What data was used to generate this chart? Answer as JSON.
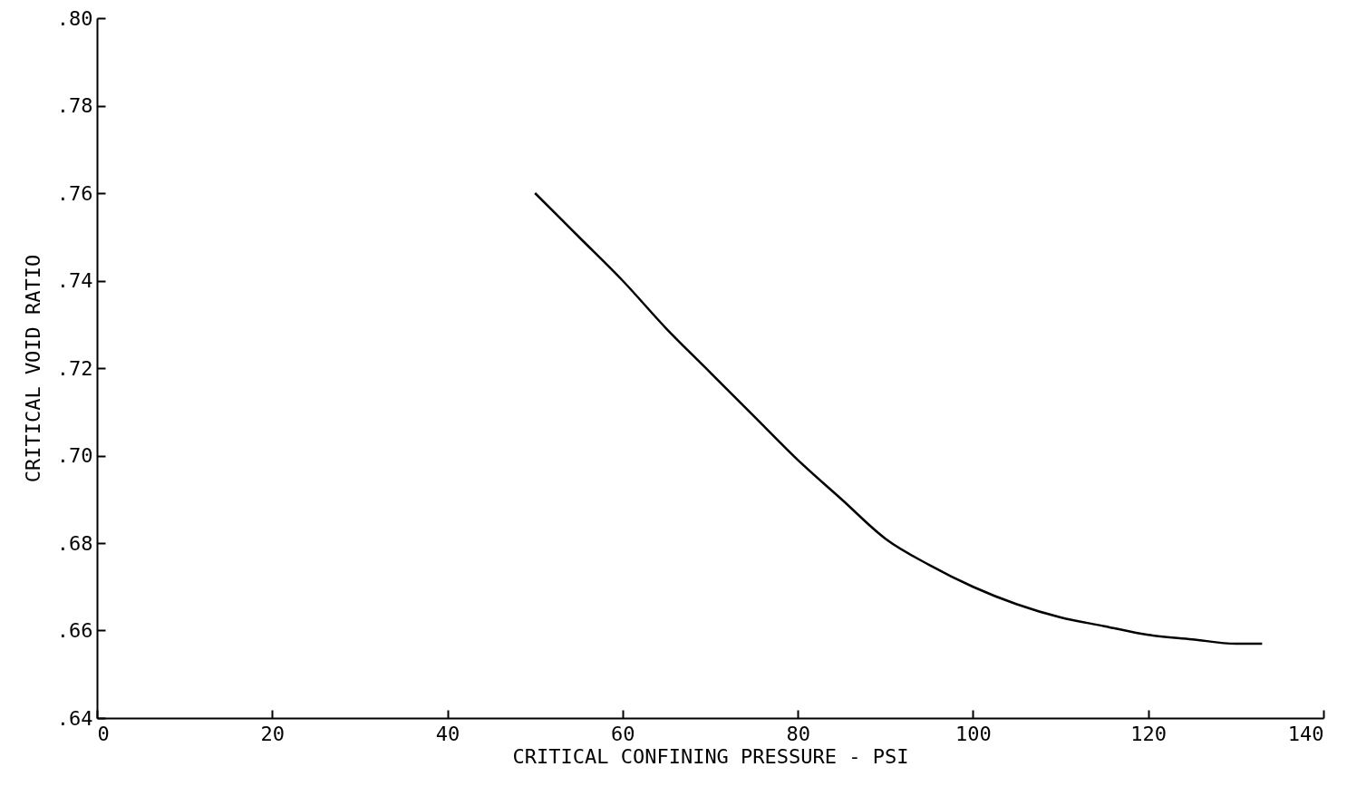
{
  "chart_data": {
    "type": "line",
    "xlabel": "CRITICAL  CONFINING  PRESSURE - PSI",
    "ylabel": "CRITICAL  VOID  RATIO",
    "color": "#000000",
    "x": [
      50,
      55,
      60,
      65,
      70,
      75,
      80,
      85,
      90,
      95,
      100,
      105,
      110,
      115,
      120,
      125,
      130,
      133
    ],
    "values": [
      0.76,
      0.75,
      0.74,
      0.729,
      0.719,
      0.709,
      0.699,
      0.69,
      0.681,
      0.675,
      0.67,
      0.666,
      0.663,
      0.661,
      0.659,
      0.658,
      0.657,
      0.657
    ],
    "xlim": [
      0,
      140
    ],
    "xticks": [
      0,
      20,
      40,
      60,
      80,
      100,
      120,
      140
    ],
    "ylim": [
      0.64,
      0.8
    ],
    "yticks": [
      {
        "value": 0.64,
        "label": ".64"
      },
      {
        "value": 0.66,
        "label": ".66"
      },
      {
        "value": 0.68,
        "label": ".68"
      },
      {
        "value": 0.7,
        "label": ".70"
      },
      {
        "value": 0.72,
        "label": ".72"
      },
      {
        "value": 0.74,
        "label": ".74"
      },
      {
        "value": 0.76,
        "label": ".76"
      },
      {
        "value": 0.78,
        "label": ".78"
      },
      {
        "value": 0.8,
        "label": ".80"
      }
    ]
  }
}
